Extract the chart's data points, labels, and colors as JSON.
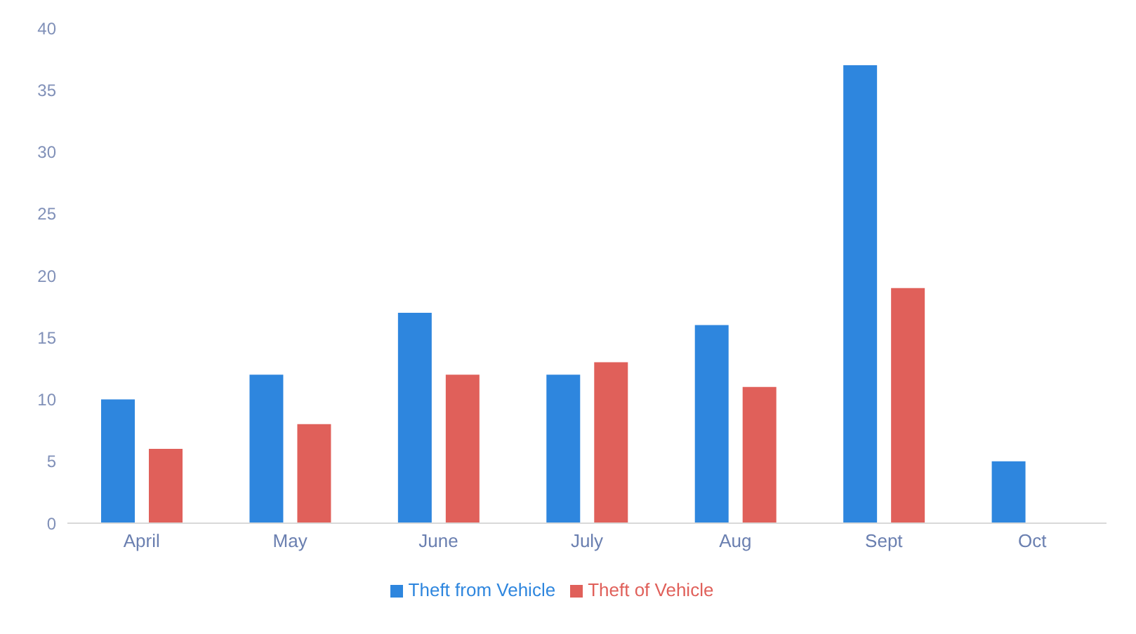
{
  "chart_data": {
    "type": "bar",
    "categories": [
      "April",
      "May",
      "June",
      "July",
      "Aug",
      "Sept",
      "Oct"
    ],
    "series": [
      {
        "name": "Theft from Vehicle",
        "color": "#2e86de",
        "values": [
          10,
          12,
          17,
          12,
          16,
          37,
          5
        ]
      },
      {
        "name": "Theft of Vehicle",
        "color": "#e0605a",
        "values": [
          6,
          8,
          12,
          13,
          11,
          19,
          null
        ]
      }
    ],
    "ylim": [
      0,
      40
    ],
    "yticks": [
      0,
      5,
      10,
      15,
      20,
      25,
      30,
      35,
      40
    ],
    "grid": false,
    "legend": "bottom"
  }
}
